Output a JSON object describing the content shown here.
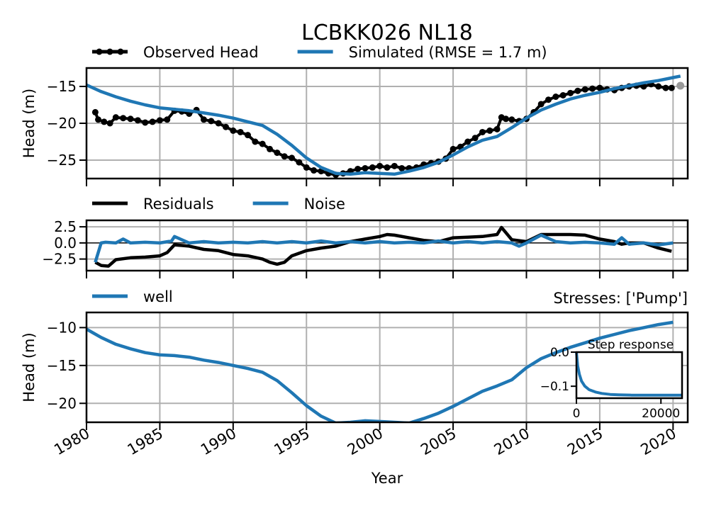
{
  "figure": {
    "title": "LCBKK026 NL18",
    "xlabel": "Year",
    "xticks": [
      1980,
      1985,
      1990,
      1995,
      2000,
      2005,
      2010,
      2015,
      2020
    ]
  },
  "chart_data": [
    {
      "type": "line",
      "panel": "head",
      "ylabel": "Head (m)",
      "xlim": [
        1980,
        2021
      ],
      "ylim": [
        -27.5,
        -12.5
      ],
      "yticks": [
        -15,
        -20,
        -25
      ],
      "ytick_labels": [
        "−15",
        "−20",
        "−25"
      ],
      "grid": true,
      "legend": "top-left, outside",
      "series": [
        {
          "name": "Observed Head",
          "style": "dots",
          "color": "#000000",
          "x": [
            1980.6,
            1980.8,
            1981.2,
            1981.6,
            1982.0,
            1982.5,
            1983.0,
            1983.5,
            1984.0,
            1984.5,
            1985.0,
            1985.5,
            1986.0,
            1986.5,
            1987.0,
            1987.5,
            1988.0,
            1988.5,
            1989.0,
            1989.5,
            1990.0,
            1990.5,
            1991.0,
            1991.5,
            1992.0,
            1992.5,
            1993.0,
            1993.5,
            1994.0,
            1994.5,
            1995.0,
            1995.5,
            1996.0,
            1996.5,
            1997.0,
            1997.5,
            1998.0,
            1998.5,
            1999.0,
            1999.5,
            2000.0,
            2000.5,
            2001.0,
            2001.5,
            2002.0,
            2002.5,
            2003.0,
            2003.5,
            2004.0,
            2004.5,
            2005.0,
            2005.5,
            2006.0,
            2006.5,
            2007.0,
            2007.5,
            2008.0,
            2008.3,
            2008.6,
            2009.0,
            2009.5,
            2010.0,
            2010.5,
            2011.0,
            2011.5,
            2012.0,
            2012.5,
            2013.0,
            2013.5,
            2014.0,
            2014.5,
            2015.0,
            2015.5,
            2016.0,
            2016.5,
            2017.0,
            2017.5,
            2018.0,
            2018.5,
            2019.0,
            2019.5,
            2019.9
          ],
          "y": [
            -18.5,
            -19.5,
            -19.8,
            -20.0,
            -19.2,
            -19.3,
            -19.4,
            -19.6,
            -19.9,
            -19.8,
            -19.6,
            -19.5,
            -18.3,
            -18.4,
            -18.7,
            -18.2,
            -19.5,
            -19.7,
            -20.0,
            -20.5,
            -21.0,
            -21.2,
            -21.6,
            -22.5,
            -22.8,
            -23.5,
            -24.0,
            -24.5,
            -24.7,
            -25.3,
            -26.0,
            -26.4,
            -26.5,
            -26.8,
            -27.0,
            -26.8,
            -26.5,
            -26.2,
            -26.1,
            -26.0,
            -25.8,
            -26.0,
            -25.8,
            -26.1,
            -26.1,
            -26.0,
            -25.6,
            -25.4,
            -25.2,
            -24.8,
            -23.5,
            -23.2,
            -22.5,
            -22.0,
            -21.2,
            -21.0,
            -20.8,
            -19.2,
            -19.4,
            -19.5,
            -19.7,
            -19.4,
            -18.5,
            -17.4,
            -16.8,
            -16.4,
            -16.2,
            -15.9,
            -15.6,
            -15.4,
            -15.3,
            -15.2,
            -15.4,
            -15.5,
            -15.2,
            -15.0,
            -14.9,
            -15.0,
            -14.7,
            -15.0,
            -15.2,
            -15.2
          ]
        },
        {
          "name": "Simulated (RMSE = 1.7 m)",
          "style": "line",
          "color": "#1f77b4",
          "x": [
            1980,
            1981,
            1982,
            1983,
            1984,
            1985,
            1986,
            1987,
            1988,
            1989,
            1990,
            1991,
            1992,
            1993,
            1994,
            1995,
            1996,
            1997,
            1998,
            1999,
            2000,
            2001,
            2002,
            2003,
            2004,
            2005,
            2006,
            2007,
            2008,
            2009,
            2010,
            2011,
            2012,
            2013,
            2014,
            2015,
            2016,
            2017,
            2018,
            2019,
            2020,
            2020.5
          ],
          "y": [
            -14.8,
            -15.7,
            -16.4,
            -17.0,
            -17.5,
            -17.9,
            -18.1,
            -18.3,
            -18.6,
            -18.9,
            -19.3,
            -19.8,
            -20.3,
            -21.5,
            -23.0,
            -24.7,
            -26.0,
            -26.8,
            -26.9,
            -26.7,
            -26.8,
            -26.9,
            -26.5,
            -26.0,
            -25.3,
            -24.3,
            -23.2,
            -22.3,
            -21.8,
            -20.6,
            -19.3,
            -18.2,
            -17.4,
            -16.7,
            -16.2,
            -15.8,
            -15.3,
            -14.9,
            -14.5,
            -14.2,
            -13.8,
            -13.6
          ]
        }
      ],
      "extra_point": {
        "x": 2020.5,
        "y": -14.9,
        "color": "#999999"
      }
    },
    {
      "type": "line",
      "panel": "residuals",
      "ylabel": "",
      "xlim": [
        1980,
        2021
      ],
      "ylim": [
        -4.3,
        3.5
      ],
      "yticks": [
        2.5,
        0.0,
        -2.5
      ],
      "ytick_labels": [
        "2.5",
        "0.0",
        "−2.5"
      ],
      "grid": true,
      "legend": "top-left, outside",
      "series": [
        {
          "name": "Residuals",
          "color": "#000000",
          "x": [
            1980.6,
            1981.0,
            1981.5,
            1982.0,
            1983.0,
            1984.0,
            1985.0,
            1985.5,
            1986.0,
            1987.0,
            1988.0,
            1989.0,
            1990.0,
            1991.0,
            1992.0,
            1992.5,
            1993.0,
            1993.5,
            1994.0,
            1995.0,
            1996.0,
            1997.0,
            1998.0,
            1999.0,
            2000.0,
            2000.5,
            2001.0,
            2002.0,
            2003.0,
            2004.0,
            2005.0,
            2006.0,
            2007.0,
            2008.0,
            2008.3,
            2008.6,
            2009.0,
            2010.0,
            2011.0,
            2012.0,
            2013.0,
            2014.0,
            2015.0,
            2016.0,
            2016.5,
            2017.0,
            2018.0,
            2019.0,
            2019.9
          ],
          "y": [
            -3.0,
            -3.5,
            -3.6,
            -2.6,
            -2.3,
            -2.2,
            -2.0,
            -1.5,
            -0.3,
            -0.5,
            -1.0,
            -1.2,
            -1.8,
            -2.0,
            -2.5,
            -3.0,
            -3.3,
            -3.0,
            -2.0,
            -1.2,
            -0.8,
            -0.5,
            0.2,
            0.6,
            1.0,
            1.3,
            1.2,
            0.8,
            0.4,
            0.2,
            0.8,
            0.9,
            1.0,
            1.3,
            2.4,
            1.6,
            0.5,
            0.2,
            1.3,
            1.3,
            1.3,
            1.2,
            0.6,
            0.2,
            -0.2,
            0.0,
            0.0,
            -0.8,
            -1.3
          ]
        },
        {
          "name": "Noise",
          "color": "#1f77b4",
          "x": [
            1980.6,
            1981.0,
            1981.3,
            1982.0,
            1982.5,
            1983.0,
            1984.0,
            1985.0,
            1985.8,
            1986.0,
            1987.0,
            1988.0,
            1989.0,
            1990.0,
            1991.0,
            1992.0,
            1993.0,
            1994.0,
            1995.0,
            1996.0,
            1997.0,
            1998.0,
            1999.0,
            2000.0,
            2001.0,
            2002.0,
            2003.0,
            2004.0,
            2005.0,
            2006.0,
            2007.0,
            2008.0,
            2009.0,
            2009.5,
            2010.0,
            2010.5,
            2011.0,
            2012.0,
            2013.0,
            2014.0,
            2015.0,
            2016.0,
            2016.5,
            2017.0,
            2018.0,
            2019.0,
            2020.0
          ],
          "y": [
            -3.0,
            0.0,
            0.1,
            0.0,
            0.6,
            0.0,
            0.1,
            0.0,
            0.3,
            1.0,
            0.0,
            0.2,
            0.0,
            0.1,
            0.0,
            0.2,
            0.0,
            0.2,
            0.0,
            0.3,
            0.0,
            0.2,
            0.0,
            0.2,
            0.0,
            0.1,
            0.0,
            0.3,
            0.0,
            0.2,
            0.0,
            0.2,
            0.0,
            -0.5,
            0.0,
            0.6,
            1.2,
            0.2,
            0.0,
            0.1,
            0.0,
            -0.2,
            0.8,
            -0.2,
            0.0,
            -0.3,
            0.0
          ]
        }
      ]
    },
    {
      "type": "line",
      "panel": "contribution",
      "ylabel": "Head (m)",
      "xlim": [
        1980,
        2021
      ],
      "ylim": [
        -22.5,
        -8.0
      ],
      "yticks": [
        -10,
        -15,
        -20
      ],
      "ytick_labels": [
        "−10",
        "−15",
        "−20"
      ],
      "grid": true,
      "legend": "top-left, outside",
      "annotation": "Stresses: ['Pump']",
      "series": [
        {
          "name": "well",
          "color": "#1f77b4",
          "x": [
            1980,
            1981,
            1982,
            1983,
            1984,
            1985,
            1986,
            1987,
            1988,
            1989,
            1990,
            1991,
            1992,
            1993,
            1994,
            1995,
            1996,
            1997,
            1998,
            1999,
            2000,
            2001,
            2002,
            2003,
            2004,
            2005,
            2006,
            2007,
            2008,
            2009,
            2010,
            2011,
            2012,
            2013,
            2014,
            2015,
            2016,
            2017,
            2018,
            2019,
            2020
          ],
          "y": [
            -10.2,
            -11.3,
            -12.2,
            -12.8,
            -13.3,
            -13.6,
            -13.7,
            -13.9,
            -14.3,
            -14.6,
            -15.0,
            -15.4,
            -15.9,
            -17.0,
            -18.6,
            -20.3,
            -21.7,
            -22.6,
            -22.5,
            -22.3,
            -22.4,
            -22.5,
            -22.6,
            -22.0,
            -21.3,
            -20.4,
            -19.4,
            -18.4,
            -17.7,
            -16.9,
            -15.3,
            -14.1,
            -13.3,
            -12.6,
            -12.0,
            -11.4,
            -10.9,
            -10.4,
            -10.0,
            -9.6,
            -9.3
          ]
        }
      ],
      "inset": {
        "title": "Step response",
        "xlim": [
          0,
          25000
        ],
        "ylim": [
          -0.135,
          0.0
        ],
        "xticks": [
          0,
          20000
        ],
        "xtick_labels": [
          "0",
          "20000"
        ],
        "yticks": [
          0.0,
          -0.1
        ],
        "ytick_labels": [
          "0.0",
          "−0.1"
        ],
        "x": [
          0,
          300,
          700,
          1200,
          2000,
          3000,
          4500,
          6000,
          8000,
          10000,
          13000,
          16000,
          20000,
          25000
        ],
        "y": [
          0.0,
          -0.04,
          -0.065,
          -0.085,
          -0.1,
          -0.11,
          -0.117,
          -0.121,
          -0.124,
          -0.125,
          -0.126,
          -0.126,
          -0.126,
          -0.126
        ]
      }
    }
  ]
}
